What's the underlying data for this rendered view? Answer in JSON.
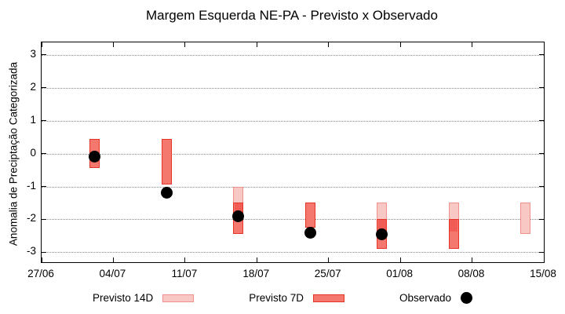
{
  "chart_data": {
    "type": "bar",
    "subtype": "range-boxes-with-observed-points",
    "title": "Margem Esquerda NE-PA - Previsto x Observado",
    "ylabel": "Anomalia de Preciptação Categorizada",
    "xlabel": "",
    "x_tick_labels": [
      "27/06",
      "04/07",
      "11/07",
      "18/07",
      "25/07",
      "01/08",
      "08/08",
      "15/08"
    ],
    "x_tick_days": [
      0,
      7,
      14,
      21,
      28,
      35,
      42,
      49
    ],
    "y_ticks": [
      3,
      2,
      1,
      0,
      -1,
      -2,
      -3
    ],
    "ylim": [
      -3.38,
      3.38
    ],
    "xlim_days": [
      0,
      49
    ],
    "grid": "horizontal-dotted",
    "legend_position": "bottom-center",
    "legend": [
      {
        "label": "Previsto 14D",
        "swatch": "box-light"
      },
      {
        "label": "Previsto 7D",
        "swatch": "box-red"
      },
      {
        "label": "Observado",
        "swatch": "black-dot"
      }
    ],
    "bars": [
      {
        "date": "02/07",
        "day": 5.2,
        "previsto_14d": null,
        "previsto_7d": [
          0.45,
          -0.45
        ],
        "observado": -0.1
      },
      {
        "date": "09/07",
        "day": 12.2,
        "previsto_14d": null,
        "previsto_7d": [
          0.45,
          -0.95
        ],
        "observado": -1.2
      },
      {
        "date": "16/07",
        "day": 19.2,
        "previsto_14d": [
          -1.0,
          -2.0
        ],
        "previsto_7d": [
          -1.5,
          -2.45
        ],
        "observado": -1.9
      },
      {
        "date": "23/07",
        "day": 26.2,
        "previsto_14d": null,
        "previsto_7d": [
          -1.5,
          -2.25
        ],
        "observado": -2.4
      },
      {
        "date": "30/07",
        "day": 33.2,
        "previsto_14d": [
          -1.5,
          -2.4
        ],
        "previsto_7d": [
          -2.0,
          -2.9
        ],
        "observado": -2.45
      },
      {
        "date": "06/08",
        "day": 40.2,
        "previsto_14d": [
          -1.5,
          -2.4
        ],
        "previsto_7d": [
          -2.0,
          -2.9
        ],
        "observado": null
      },
      {
        "date": "13/08",
        "day": 47.2,
        "previsto_14d": [
          -1.5,
          -2.45
        ],
        "previsto_7d": null,
        "observado": null
      }
    ],
    "colors": {
      "p14_fill": "#f8c9c4",
      "p14_border": "#ef928c",
      "p7_fill": "#f5786f",
      "p7_overlap_fill": "#f15d55",
      "p7_border": "#e5342a",
      "observed": "#000000",
      "grid": "#8a8a8a",
      "axis": "#000000",
      "background": "#ffffff"
    }
  }
}
